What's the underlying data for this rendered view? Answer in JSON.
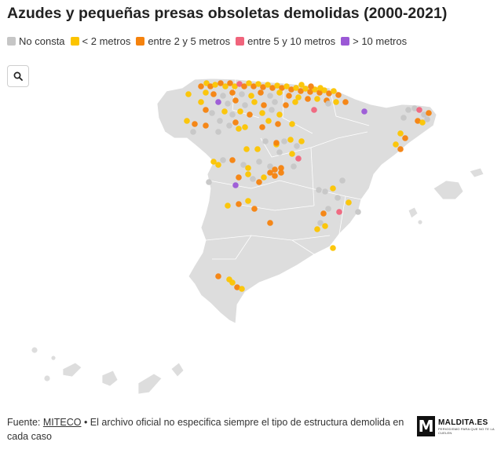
{
  "title": "Azudes y pequeñas presas obsoletas demolidas (2000-2021)",
  "legend": [
    {
      "key": "none",
      "label": "No consta",
      "color": "#c6c6c6"
    },
    {
      "key": "lt2",
      "label": "< 2 metros",
      "color": "#fcc400"
    },
    {
      "key": "2to5",
      "label": "entre 2 y 5 metros",
      "color": "#f5820d"
    },
    {
      "key": "5to10",
      "label": "entre 5 y 10 metros",
      "color": "#f0647c"
    },
    {
      "key": "gt10",
      "label": "> 10 metros",
      "color": "#9b59d6"
    }
  ],
  "search_icon": "magnifier-icon",
  "footer": {
    "prefix": "Fuente: ",
    "link": "MITECO",
    "text": " • El archivo oficial no especifica siempre el tipo de estructura demolida en cada caso"
  },
  "logo": {
    "mark": "M",
    "name": "MALDITA.ES",
    "tagline": "PERIODISMO PARA QUE NO TE LA CUELEN"
  },
  "colors": {
    "land": "#dddddd",
    "border": "#ffffff"
  }
}
